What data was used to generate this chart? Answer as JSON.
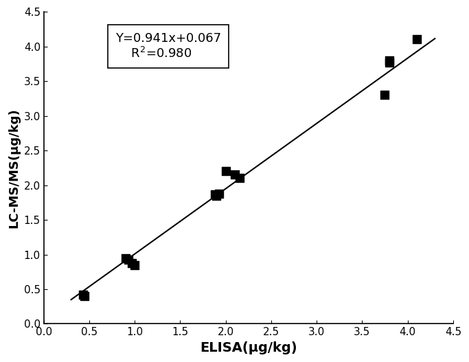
{
  "scatter_x": [
    0.43,
    0.45,
    0.9,
    0.93,
    0.97,
    1.0,
    1.88,
    1.9,
    1.93,
    2.0,
    2.1,
    2.15,
    3.75,
    3.8,
    3.8,
    4.1
  ],
  "scatter_y": [
    0.42,
    0.4,
    0.95,
    0.93,
    0.88,
    0.85,
    1.87,
    1.85,
    1.88,
    2.2,
    2.15,
    2.1,
    3.3,
    3.8,
    3.77,
    4.1
  ],
  "line_slope": 0.941,
  "line_intercept": 0.067,
  "x_line_start": 0.3,
  "x_line_end": 4.3,
  "xlabel": "ELISA(μg/kg)",
  "ylabel": "LC-MS/MS(μg/kg)",
  "xlim": [
    0.0,
    4.5
  ],
  "ylim": [
    0.0,
    4.5
  ],
  "xticks": [
    0.0,
    0.5,
    1.0,
    1.5,
    2.0,
    2.5,
    3.0,
    3.5,
    4.0,
    4.5
  ],
  "yticks": [
    0.0,
    0.5,
    1.0,
    1.5,
    2.0,
    2.5,
    3.0,
    3.5,
    4.0,
    4.5
  ],
  "equation_line1": "Y=0.941x+0.067",
  "equation_line2": "R$^2$=0.980",
  "marker_color": "black",
  "line_color": "black",
  "marker_size": 8,
  "line_width": 1.5
}
